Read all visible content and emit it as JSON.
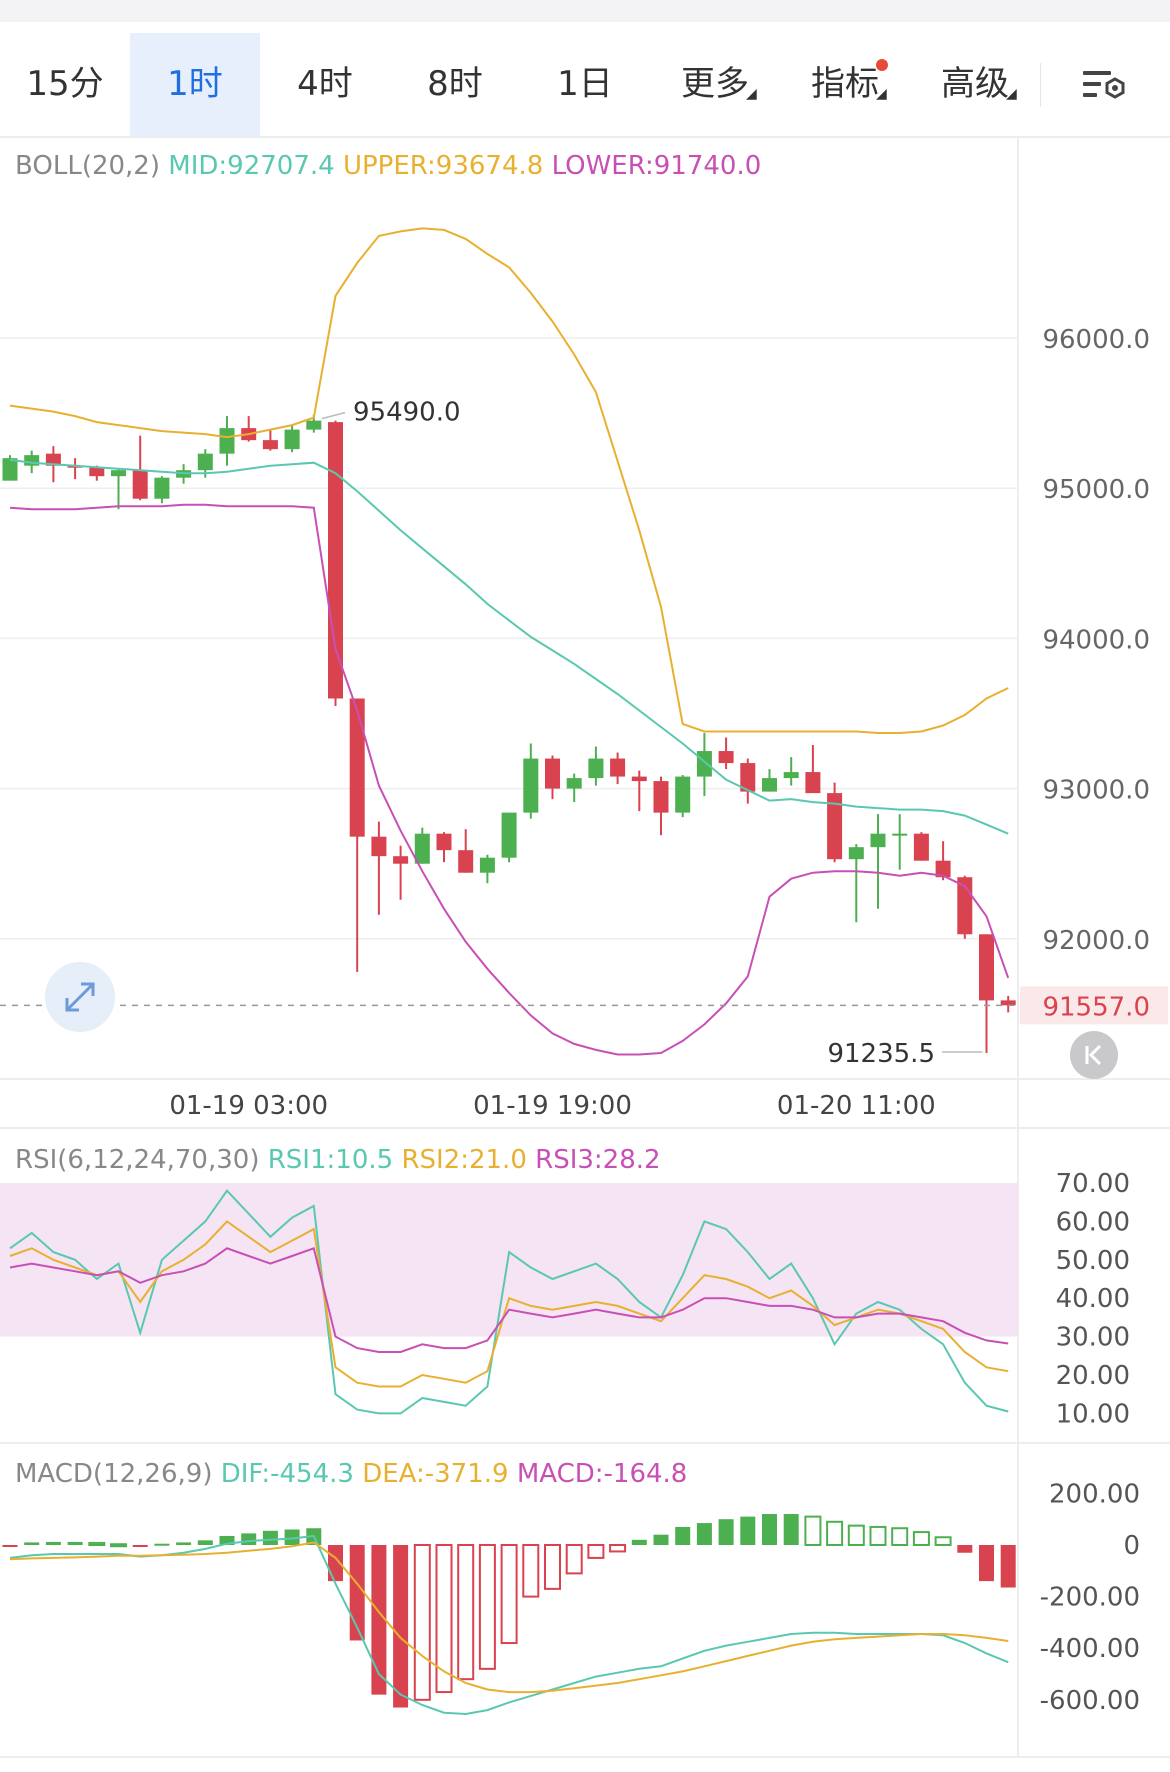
{
  "toolbar": {
    "tabs": [
      "15分",
      "1时",
      "4时",
      "8时",
      "1日",
      "更多",
      "指标",
      "高级"
    ],
    "active_tab": "1时",
    "settings_icon": "chart-settings-icon"
  },
  "boll_label": {
    "name": "BOLL(20,2)",
    "mid": "MID:92707.4",
    "upper": "UPPER:93674.8",
    "lower": "LOWER:91740.0"
  },
  "rsi_label": {
    "name": "RSI(6,12,24,70,30)",
    "rsi1": "RSI1:10.5",
    "rsi2": "RSI2:21.0",
    "rsi3": "RSI3:28.2"
  },
  "macd_label": {
    "name": "MACD(12,26,9)",
    "dif": "DIF:-454.3",
    "dea": "DEA:-371.9",
    "macd": "MACD:-164.8"
  },
  "colors": {
    "up": "#4caf50",
    "down": "#d9434f",
    "mid": "#5ac8b0",
    "upper": "#e8b030",
    "lower": "#c850b4",
    "rsi_band": "#f5e4f4",
    "price_tag": "#d9434f"
  },
  "chart_data": [
    {
      "type": "candlestick",
      "title": "BOLL(20,2)",
      "ylim": [
        91000,
        96800
      ],
      "y_ticks": [
        "96000.0",
        "95000.0",
        "94000.0",
        "93000.0",
        "92000.0"
      ],
      "x_tick_labels": [
        "01-19 03:00",
        "01-19 19:00",
        "01-20 11:00"
      ],
      "annotations": {
        "high_label": "95490.0",
        "low_label": "91235.5",
        "last_price": "91557.0"
      },
      "candles": [
        [
          95050,
          95220,
          95060,
          95200
        ],
        [
          95150,
          95250,
          95100,
          95220
        ],
        [
          95230,
          95280,
          95040,
          95150
        ],
        [
          95150,
          95200,
          95060,
          95140
        ],
        [
          95140,
          95150,
          95050,
          95080
        ],
        [
          95080,
          95130,
          94860,
          95120
        ],
        [
          95120,
          95350,
          94920,
          94930
        ],
        [
          94930,
          95080,
          94900,
          95070
        ],
        [
          95070,
          95160,
          95030,
          95120
        ],
        [
          95120,
          95260,
          95070,
          95230
        ],
        [
          95230,
          95480,
          95150,
          95400
        ],
        [
          95400,
          95480,
          95310,
          95320
        ],
        [
          95320,
          95390,
          95250,
          95260
        ],
        [
          95260,
          95420,
          95240,
          95390
        ],
        [
          95390,
          95490,
          95370,
          95450
        ],
        [
          95440,
          95450,
          93550,
          93600
        ],
        [
          93600,
          93600,
          91780,
          92680
        ],
        [
          92680,
          92780,
          92160,
          92550
        ],
        [
          92550,
          92620,
          92260,
          92500
        ],
        [
          92500,
          92740,
          92500,
          92700
        ],
        [
          92700,
          92710,
          92510,
          92590
        ],
        [
          92590,
          92730,
          92440,
          92440
        ],
        [
          92440,
          92560,
          92370,
          92540
        ],
        [
          92540,
          92840,
          92510,
          92840
        ],
        [
          92840,
          93300,
          92800,
          93200
        ],
        [
          93200,
          93220,
          92930,
          93000
        ],
        [
          93000,
          93100,
          92910,
          93070
        ],
        [
          93070,
          93280,
          93020,
          93200
        ],
        [
          93200,
          93240,
          93030,
          93080
        ],
        [
          93080,
          93120,
          92850,
          93050
        ],
        [
          93050,
          93080,
          92690,
          92840
        ],
        [
          92840,
          93090,
          92810,
          93080
        ],
        [
          93080,
          93370,
          92950,
          93250
        ],
        [
          93250,
          93340,
          93130,
          93170
        ],
        [
          93170,
          93200,
          92900,
          92980
        ],
        [
          92980,
          93130,
          92980,
          93070
        ],
        [
          93070,
          93210,
          93020,
          93110
        ],
        [
          93110,
          93290,
          92990,
          92970
        ],
        [
          92970,
          93040,
          92510,
          92530
        ],
        [
          92530,
          92630,
          92110,
          92610
        ],
        [
          92610,
          92830,
          92200,
          92700
        ],
        [
          92700,
          92830,
          92460,
          92700
        ],
        [
          92700,
          92710,
          92520,
          92520
        ],
        [
          92520,
          92650,
          92390,
          92410
        ],
        [
          92410,
          92420,
          92000,
          92030
        ],
        [
          92030,
          92030,
          91240,
          91590
        ],
        [
          91590,
          91620,
          91510,
          91557
        ]
      ],
      "series": [
        {
          "name": "MID",
          "values": [
            95190,
            95170,
            95160,
            95150,
            95140,
            95130,
            95120,
            95110,
            95100,
            95100,
            95110,
            95130,
            95150,
            95160,
            95170,
            95100,
            94980,
            94850,
            94720,
            94600,
            94480,
            94360,
            94230,
            94120,
            94010,
            93920,
            93830,
            93730,
            93630,
            93520,
            93410,
            93300,
            93180,
            93060,
            92990,
            92920,
            92930,
            92910,
            92900,
            92880,
            92870,
            92860,
            92860,
            92850,
            92820,
            92760,
            92700
          ]
        },
        {
          "name": "UPPER",
          "values": [
            95550,
            95530,
            95510,
            95480,
            95440,
            95420,
            95400,
            95380,
            95370,
            95360,
            95340,
            95360,
            95390,
            95420,
            95470,
            96280,
            96500,
            96680,
            96710,
            96730,
            96720,
            96660,
            96560,
            96470,
            96300,
            96110,
            95890,
            95640,
            95180,
            94720,
            94210,
            93430,
            93380,
            93380,
            93380,
            93380,
            93380,
            93380,
            93380,
            93380,
            93370,
            93370,
            93380,
            93420,
            93490,
            93600,
            93670
          ]
        },
        {
          "name": "LOWER",
          "values": [
            94870,
            94860,
            94860,
            94860,
            94870,
            94880,
            94880,
            94880,
            94890,
            94890,
            94880,
            94880,
            94880,
            94880,
            94870,
            93930,
            93520,
            93020,
            92720,
            92450,
            92200,
            91980,
            91800,
            91640,
            91490,
            91370,
            91300,
            91260,
            91230,
            91230,
            91240,
            91320,
            91430,
            91570,
            91750,
            92280,
            92400,
            92440,
            92450,
            92450,
            92440,
            92420,
            92440,
            92420,
            92350,
            92150,
            91740
          ]
        }
      ]
    },
    {
      "type": "line",
      "title": "RSI(6,12,24,70,30)",
      "ylim": [
        10,
        70
      ],
      "y_ticks": [
        "70.00",
        "60.00",
        "50.00",
        "40.00",
        "30.00",
        "20.00",
        "10.00"
      ],
      "band": [
        30,
        70
      ],
      "series": [
        {
          "name": "RSI1",
          "values": [
            53,
            57,
            52,
            50,
            45,
            49,
            31,
            50,
            55,
            60,
            68,
            62,
            56,
            61,
            64,
            15,
            11,
            10,
            10,
            14,
            13,
            12,
            17,
            52,
            48,
            45,
            47,
            49,
            45,
            39,
            35,
            46,
            60,
            58,
            52,
            45,
            49,
            40,
            28,
            36,
            39,
            37,
            32,
            28,
            18,
            12,
            10.5
          ]
        },
        {
          "name": "RSI2",
          "values": [
            51,
            53,
            50,
            48,
            46,
            47,
            39,
            47,
            50,
            54,
            60,
            56,
            52,
            55,
            58,
            22,
            18,
            17,
            17,
            20,
            19,
            18,
            21,
            40,
            38,
            37,
            38,
            39,
            38,
            36,
            34,
            40,
            46,
            45,
            43,
            40,
            42,
            38,
            33,
            35,
            37,
            36,
            34,
            32,
            26,
            22,
            21
          ]
        },
        {
          "name": "RSI3",
          "values": [
            48,
            49,
            48,
            47,
            46,
            47,
            44,
            46,
            47,
            49,
            53,
            51,
            49,
            51,
            53,
            30,
            27,
            26,
            26,
            28,
            27,
            27,
            29,
            37,
            36,
            35,
            36,
            37,
            36,
            35,
            35,
            37,
            40,
            40,
            39,
            38,
            38,
            37,
            35,
            35,
            36,
            36,
            35,
            34,
            31,
            29,
            28.2
          ]
        }
      ]
    },
    {
      "type": "bar+line",
      "title": "MACD(12,26,9)",
      "ylim": [
        -700,
        250
      ],
      "y_ticks": [
        "200.00",
        "0",
        "-200.00",
        "-400.00",
        "-600.00"
      ],
      "histogram": [
        -5,
        10,
        12,
        12,
        8,
        3,
        -5,
        5,
        10,
        18,
        35,
        45,
        55,
        60,
        65,
        -140,
        -370,
        -580,
        -630,
        -600,
        -570,
        -520,
        -480,
        -380,
        -200,
        -170,
        -110,
        -50,
        -25,
        20,
        40,
        70,
        85,
        100,
        110,
        120,
        120,
        110,
        90,
        75,
        70,
        65,
        50,
        30,
        -30,
        -140,
        -164.8
      ],
      "series": [
        {
          "name": "DIF",
          "values": [
            -50,
            -40,
            -35,
            -35,
            -35,
            -35,
            -45,
            -40,
            -30,
            -15,
            5,
            15,
            20,
            25,
            35,
            -150,
            -320,
            -500,
            -580,
            -620,
            -650,
            -655,
            -640,
            -610,
            -585,
            -560,
            -535,
            -510,
            -495,
            -480,
            -470,
            -440,
            -410,
            -390,
            -375,
            -360,
            -345,
            -340,
            -340,
            -345,
            -345,
            -345,
            -345,
            -350,
            -380,
            -420,
            -454.3
          ]
        },
        {
          "name": "DEA",
          "values": [
            -55,
            -52,
            -50,
            -48,
            -45,
            -42,
            -42,
            -40,
            -38,
            -35,
            -30,
            -22,
            -15,
            -5,
            10,
            -50,
            -150,
            -260,
            -360,
            -430,
            -490,
            -535,
            -560,
            -570,
            -570,
            -565,
            -555,
            -545,
            -535,
            -520,
            -505,
            -490,
            -470,
            -450,
            -430,
            -410,
            -390,
            -375,
            -365,
            -360,
            -355,
            -350,
            -345,
            -345,
            -350,
            -360,
            -371.9
          ]
        }
      ]
    }
  ]
}
